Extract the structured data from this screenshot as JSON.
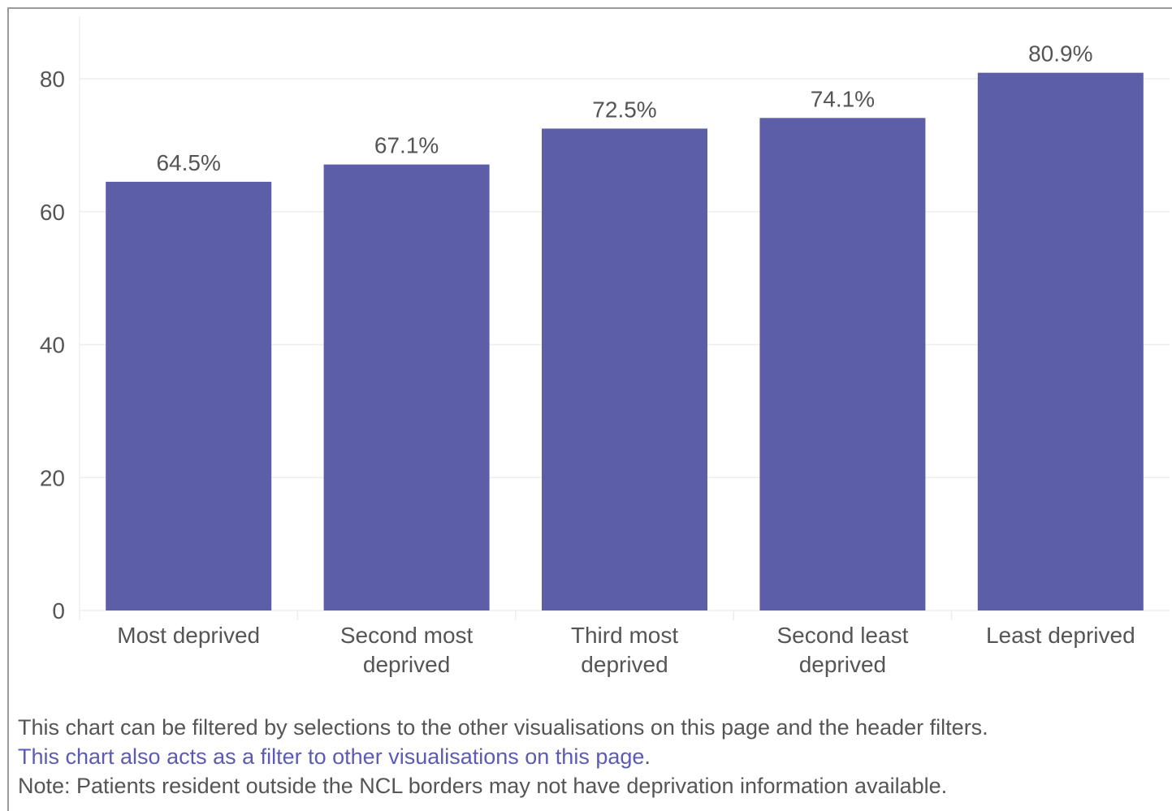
{
  "chart_data": {
    "type": "bar",
    "categories": [
      [
        "Most deprived"
      ],
      [
        "Second most",
        "deprived"
      ],
      [
        "Third most",
        "deprived"
      ],
      [
        "Second least",
        "deprived"
      ],
      [
        "Least deprived"
      ]
    ],
    "values": [
      64.5,
      67.1,
      72.5,
      74.1,
      80.9
    ],
    "data_labels": [
      "64.5%",
      "67.1%",
      "72.5%",
      "74.1%",
      "80.9%"
    ],
    "yticks": [
      0,
      20,
      40,
      60,
      80
    ],
    "ylim": [
      0,
      80
    ],
    "title": "",
    "xlabel": "",
    "ylabel": "",
    "bar_color": "#5c5fa8",
    "grid": true
  },
  "notes": {
    "filter_text": "This chart can be filtered by selections to the other visualisations on this page and the header filters.",
    "filter_link": "This chart also acts as a filter to other visualisations on this page",
    "filter_link_end": ".",
    "deprivation_note": "Note: Patients resident outside the NCL borders may not have deprivation information available."
  },
  "colors": {
    "link": "#5b5bb6",
    "text": "#555555",
    "axis_text": "#555555",
    "grid": "#eeeeee"
  }
}
